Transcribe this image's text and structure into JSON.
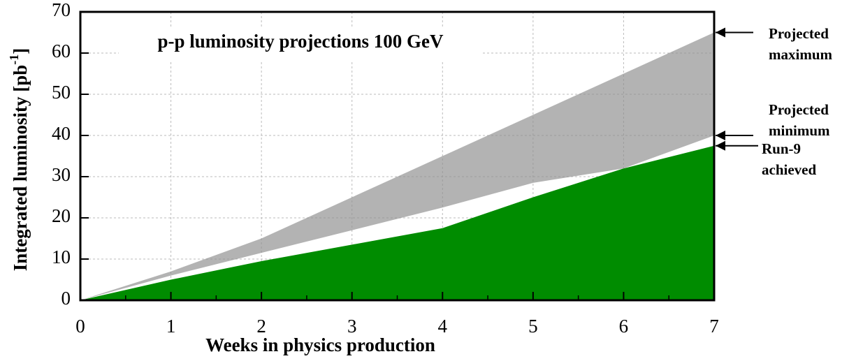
{
  "chart_data": {
    "type": "area",
    "title": "p-p luminosity projections 100 GeV",
    "xlabel": "Weeks in physics production",
    "ylabel": {
      "text": "Integrated luminosity [pb",
      "superscript": "-1",
      "suffix": "]"
    },
    "x": [
      0,
      1,
      2,
      3,
      4,
      5,
      6,
      7
    ],
    "series": [
      {
        "name": "Run-9 achieved",
        "color": "#008c00",
        "values": [
          0,
          5,
          9.5,
          13.5,
          17.5,
          25,
          32,
          37.5
        ]
      },
      {
        "name": "Projected minimum",
        "color": "#8e8e8e",
        "values": [
          0,
          6,
          11.5,
          17,
          22.5,
          28.5,
          32,
          40
        ]
      },
      {
        "name": "Projected maximum",
        "color": "#8e8e8e",
        "values": [
          0,
          7,
          15,
          25,
          35,
          45,
          55,
          65
        ]
      }
    ],
    "xlim": [
      0,
      7
    ],
    "xticks": [
      0,
      1,
      2,
      3,
      4,
      5,
      6,
      7
    ],
    "ylim": [
      0,
      70
    ],
    "yticks": [
      0,
      10,
      20,
      30,
      40,
      50,
      60,
      70
    ],
    "grid": true
  }
}
